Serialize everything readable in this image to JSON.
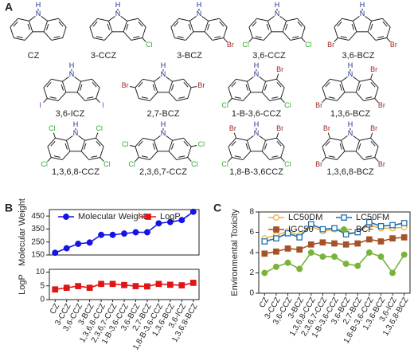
{
  "panel_labels": [
    "A",
    "B",
    "C"
  ],
  "compounds": [
    {
      "name": "CZ",
      "atoms": [
        "N",
        "H"
      ]
    },
    {
      "name": "3-CCZ",
      "atoms": [
        "N",
        "H",
        "Cl"
      ]
    },
    {
      "name": "3-BCZ",
      "atoms": [
        "N",
        "H",
        "Br"
      ]
    },
    {
      "name": "3,6-CCZ",
      "atoms": [
        "N",
        "H",
        "Cl",
        "Cl"
      ]
    },
    {
      "name": "3,6-BCZ",
      "atoms": [
        "N",
        "H",
        "Br",
        "Br"
      ]
    },
    {
      "name": "3,6-ICZ",
      "atoms": [
        "N",
        "H",
        "I",
        "I"
      ]
    },
    {
      "name": "2,7-BCZ",
      "atoms": [
        "N",
        "H",
        "Br",
        "Br"
      ]
    },
    {
      "name": "1-B-3,6-CCZ",
      "atoms": [
        "N",
        "H",
        "Br",
        "Cl",
        "Cl"
      ]
    },
    {
      "name": "1,3,6-BCZ",
      "atoms": [
        "N",
        "H",
        "Br",
        "Br",
        "Br"
      ]
    },
    {
      "name": "1,3,6,8-CCZ",
      "atoms": [
        "N",
        "H",
        "Cl",
        "Cl",
        "Cl",
        "Cl"
      ]
    },
    {
      "name": "2,3,6,7-CCZ",
      "atoms": [
        "N",
        "H",
        "Cl",
        "Cl",
        "Cl",
        "Cl"
      ]
    },
    {
      "name": "1,8-B-3,6CCZ",
      "atoms": [
        "N",
        "H",
        "Br",
        "Br",
        "Cl",
        "Cl"
      ]
    },
    {
      "name": "1,3,6,8-BCZ",
      "atoms": [
        "N",
        "H",
        "Br",
        "Br",
        "Br",
        "Br"
      ]
    }
  ],
  "chart_data": [
    {
      "type": "line",
      "ylabel": "Molecular Weight",
      "ylim": [
        150,
        500
      ],
      "yticks": [
        150,
        250,
        350,
        450
      ],
      "series": [
        {
          "name": "Molecular Weight",
          "color": "#1515e0",
          "marker": "circle",
          "values": [
            167,
            202,
            236,
            246,
            305,
            305,
            315,
            325,
            325,
            394,
            404,
            419,
            483
          ]
        }
      ]
    },
    {
      "type": "line",
      "ylabel": "LogP",
      "ylim": [
        0,
        11
      ],
      "yticks": [
        0,
        5,
        10
      ],
      "categories": [
        "CZ",
        "3-CCZ",
        "3,6-CCZ",
        "3-BCZ",
        "1,3,6,8-CCZ",
        "2,3,6,7-CCZ",
        "1-B-3,6-CCZ",
        "3,6-BCZ",
        "2,7-BCZ",
        "1,8-B-3,6-CCZ",
        "1,3,6-BCZ",
        "3,6-ICZ",
        "1,3,6,8-BCZ"
      ],
      "series": [
        {
          "name": "LogP",
          "color": "#e01515",
          "marker": "square",
          "values": [
            3.7,
            4.3,
            4.9,
            4.3,
            5.7,
            5.7,
            5.3,
            4.9,
            4.8,
            5.7,
            5.4,
            5.2,
            6.1
          ]
        }
      ]
    },
    {
      "type": "line",
      "ylabel": "Environmental Toxicity",
      "ylim": [
        0,
        8
      ],
      "yticks": [
        0,
        2,
        4,
        6,
        8
      ],
      "categories": [
        "CZ",
        "3-CCZ",
        "3,6-CCZ",
        "3-BCZ",
        "1,3,6,8-CCZ",
        "2,3,6,7-CCZ",
        "1-B-3,6-CCZ",
        "3,6-BCZ",
        "2,7-BCZ",
        "1,8-B-3,6-CCZ",
        "1,3,6-BCZ",
        "3,6-ICZ",
        "1,3,6,8-BCZ"
      ],
      "series": [
        {
          "name": "LC50DM",
          "color": "#f2b13a",
          "marker": "open-circle",
          "values": [
            5.4,
            5.7,
            6.1,
            5.7,
            6.6,
            6.1,
            6.3,
            5.9,
            6.0,
            6.7,
            6.4,
            6.4,
            6.5
          ]
        },
        {
          "name": "LC50FM",
          "color": "#1f6fb4",
          "marker": "open-square",
          "values": [
            5.1,
            5.4,
            5.9,
            5.5,
            6.8,
            6.3,
            6.4,
            5.8,
            6.0,
            7.0,
            6.6,
            6.7,
            6.9
          ]
        },
        {
          "name": "IGC50",
          "color": "#a5522a",
          "marker": "square",
          "values": [
            3.9,
            4.1,
            4.4,
            4.3,
            4.8,
            5.0,
            4.9,
            4.8,
            4.9,
            5.3,
            5.1,
            5.4,
            5.5
          ]
        },
        {
          "name": "BCF",
          "color": "#78b33a",
          "marker": "circle",
          "values": [
            2.0,
            2.6,
            3.0,
            2.4,
            4.0,
            3.6,
            3.6,
            2.9,
            2.7,
            4.0,
            3.6,
            2.0,
            3.8
          ]
        }
      ]
    }
  ]
}
